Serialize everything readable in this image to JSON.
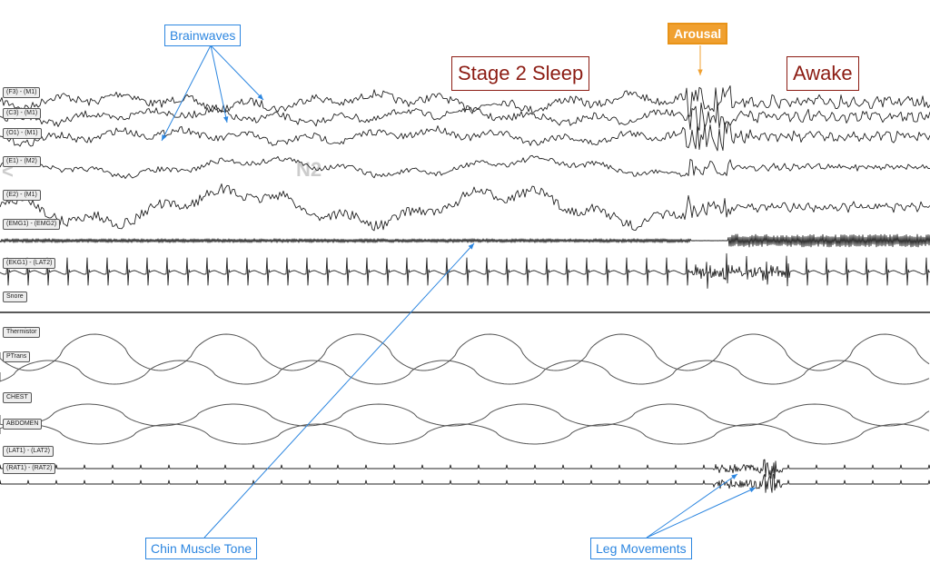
{
  "callouts": {
    "brainwaves": "Brainwaves",
    "arousal": "Arousal",
    "chin_muscle_tone": "Chin Muscle Tone",
    "leg_movements": "Leg Movements"
  },
  "stages": {
    "stage2": "Stage 2 Sleep",
    "awake": "Awake",
    "n2_watermark": "N2"
  },
  "channels": [
    "(F3) - (M1)",
    "(C3) - (M1)",
    "(O1) - (M1)",
    "(E1) - (M2)",
    "(E2) - (M1)",
    "(EMG1) - (EMG2)",
    "(EKG1) - (LAT2)",
    "Snore",
    "Thermistor",
    "PTrans",
    "CHEST",
    "ABDOMEN",
    "(LAT1) - (LAT2)",
    "(RAT1) - (RAT2)"
  ],
  "colors": {
    "trace": "#222222",
    "callout_blue": "#2c86e0",
    "arousal_orange": "#f0a030",
    "stage_red": "#8c1c13"
  }
}
